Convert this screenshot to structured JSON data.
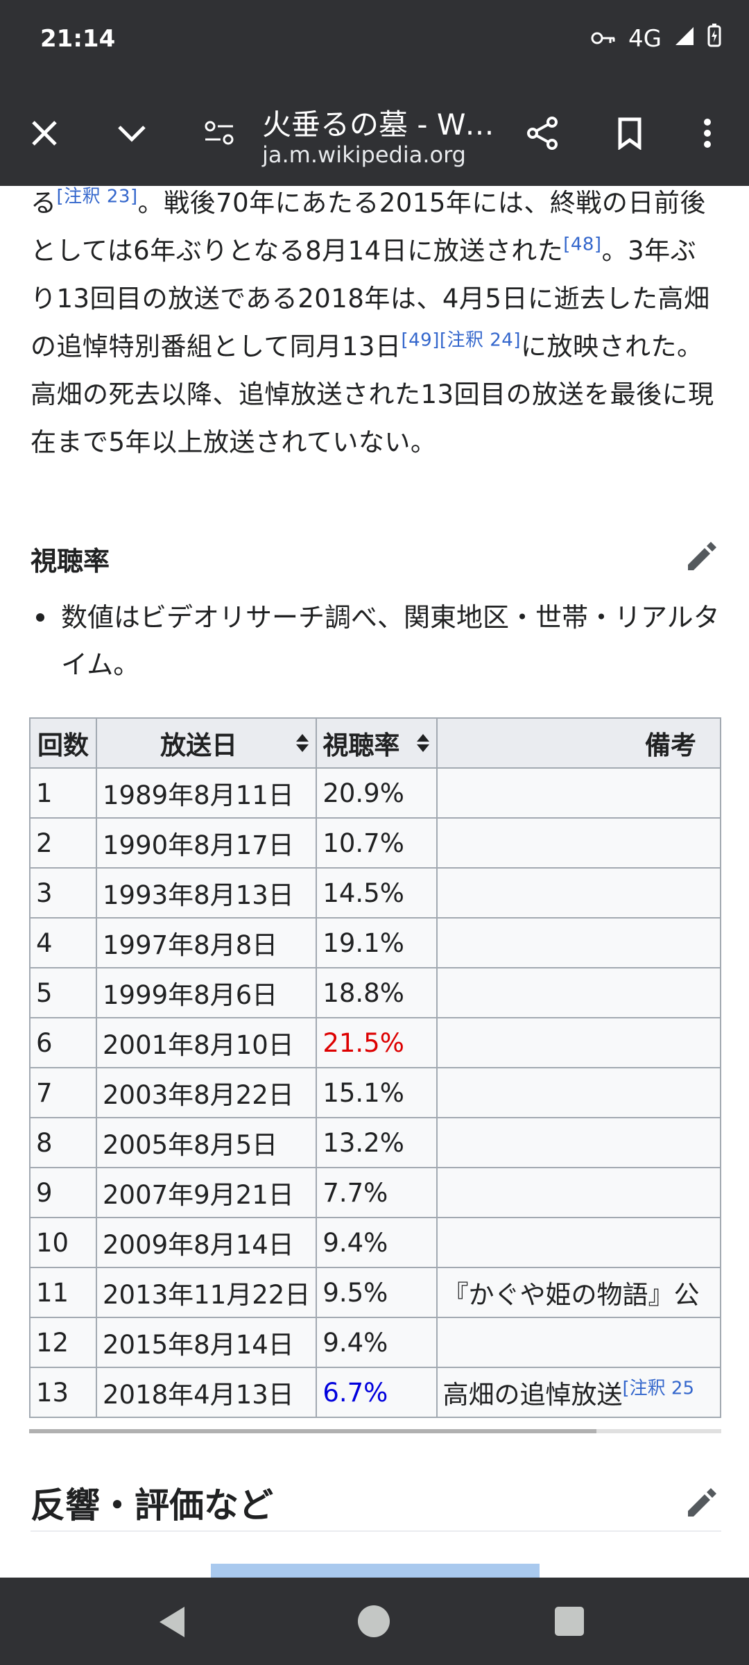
{
  "status_bar": {
    "time": "21:14",
    "network": "4G"
  },
  "toolbar": {
    "page_title": "火垂るの墓 - Wi…",
    "url": "ja.m.wikipedia.org"
  },
  "article": {
    "paragraph": [
      {
        "text": "る"
      },
      {
        "sup": "[注釈 23]"
      },
      {
        "text": "。戦後70年にあたる2015年には、終戦の日前後としては6年ぶりとなる8月14日に放送された"
      },
      {
        "sup": "[48]"
      },
      {
        "text": "。3年ぶり13回目の放送である2018年は、4月5日に逝去した高畑の追悼特別番組として同月13日"
      },
      {
        "sup": "[49][注釈 24]"
      },
      {
        "text": "に放映された。高畑の死去以降、追悼放送された13回目の放送を最後に現在まで5年以上放送されていない。"
      }
    ],
    "section_ratings": "視聴率",
    "bullet_note": "数値はビデオリサーチ調べ、関東地区・世帯・リアルタイム。",
    "table": {
      "headers": [
        "回数",
        "放送日",
        "視聴率",
        "備考"
      ],
      "rows": [
        {
          "n": "1",
          "date": "1989年8月11日",
          "rating": "20.9%",
          "note": ""
        },
        {
          "n": "2",
          "date": "1990年8月17日",
          "rating": "10.7%",
          "note": ""
        },
        {
          "n": "3",
          "date": "1993年8月13日",
          "rating": "14.5%",
          "note": ""
        },
        {
          "n": "4",
          "date": "1997年8月8日",
          "rating": "19.1%",
          "note": ""
        },
        {
          "n": "5",
          "date": "1999年8月6日",
          "rating": "18.8%",
          "note": ""
        },
        {
          "n": "6",
          "date": "2001年8月10日",
          "rating": "21.5%",
          "note": "",
          "highlight": "#dd0000"
        },
        {
          "n": "7",
          "date": "2003年8月22日",
          "rating": "15.1%",
          "note": ""
        },
        {
          "n": "8",
          "date": "2005年8月5日",
          "rating": "13.2%",
          "note": ""
        },
        {
          "n": "9",
          "date": "2007年9月21日",
          "rating": "7.7%",
          "note": ""
        },
        {
          "n": "10",
          "date": "2009年8月14日",
          "rating": "9.4%",
          "note": ""
        },
        {
          "n": "11",
          "date": "2013年11月22日",
          "rating": "9.5%",
          "note": "『かぐや姫の物語』公"
        },
        {
          "n": "12",
          "date": "2015年8月14日",
          "rating": "9.4%",
          "note": ""
        },
        {
          "n": "13",
          "date": "2018年4月13日",
          "rating": "6.7%",
          "note": "高畑の追悼放送",
          "note_sup": "[注釈 25",
          "highlight": "#0000dd"
        }
      ]
    },
    "section_reactions": "反響・評価など"
  }
}
